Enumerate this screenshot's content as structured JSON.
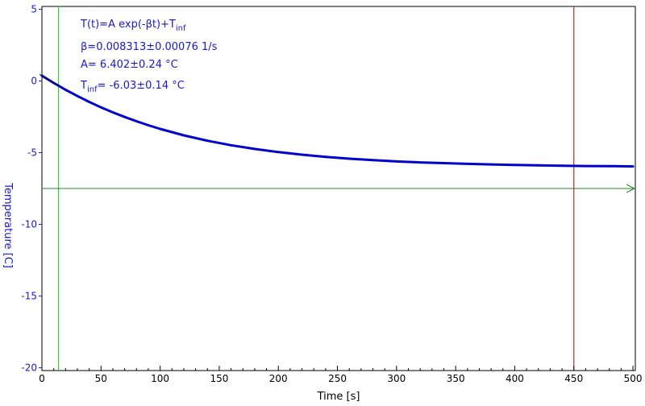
{
  "chart_data": {
    "type": "line",
    "xlabel": "Time [s]",
    "ylabel": "Temperature [C]",
    "xlim": [
      0,
      502
    ],
    "ylim": [
      -20.2,
      5.2
    ],
    "x_ticks": [
      0,
      50,
      100,
      150,
      200,
      250,
      300,
      350,
      400,
      450,
      500
    ],
    "y_ticks": [
      5,
      0,
      -5,
      -10,
      -15,
      -20
    ],
    "grid": false,
    "fit": {
      "formula_main": "T(t)=A exp(-βt)+T",
      "formula_sub": "inf",
      "beta": "β=0.008313±0.00076 1/s",
      "A": "A= 6.402±0.24 °C",
      "tinf_prefix": "T",
      "tinf_sub": "inf",
      "tinf_value": "= -6.03±0.14 °C",
      "A_value": 6.402,
      "beta_value": 0.008313,
      "tinf_value_num": -6.03
    },
    "series": [
      {
        "x": [
          0,
          10,
          20,
          30,
          40,
          50,
          60,
          70,
          80,
          90,
          100,
          120,
          140,
          160,
          180,
          200,
          220,
          240,
          260,
          280,
          300,
          320,
          340,
          360,
          380,
          400,
          420,
          440,
          460,
          480,
          500
        ],
        "y": [
          0.37,
          -0.14,
          -0.61,
          -1.05,
          -1.46,
          -1.84,
          -2.19,
          -2.51,
          -2.81,
          -3.09,
          -3.34,
          -3.79,
          -4.17,
          -4.48,
          -4.74,
          -4.96,
          -5.14,
          -5.29,
          -5.42,
          -5.52,
          -5.61,
          -5.68,
          -5.73,
          -5.78,
          -5.82,
          -5.86,
          -5.88,
          -5.91,
          -5.93,
          -5.94,
          -5.96
        ]
      }
    ],
    "markers": {
      "cursor_left_x": 14,
      "cursor_right_x": 450,
      "threshold_y": -7.5
    },
    "colors": {
      "data": "#0000cc",
      "fit": "#000000",
      "cursor_left": "#33cc33",
      "cursor_right": "#cc2222",
      "threshold": "#228822",
      "axis": "#000000",
      "ytext": "#1a1acc",
      "xtext": "#000000"
    }
  }
}
